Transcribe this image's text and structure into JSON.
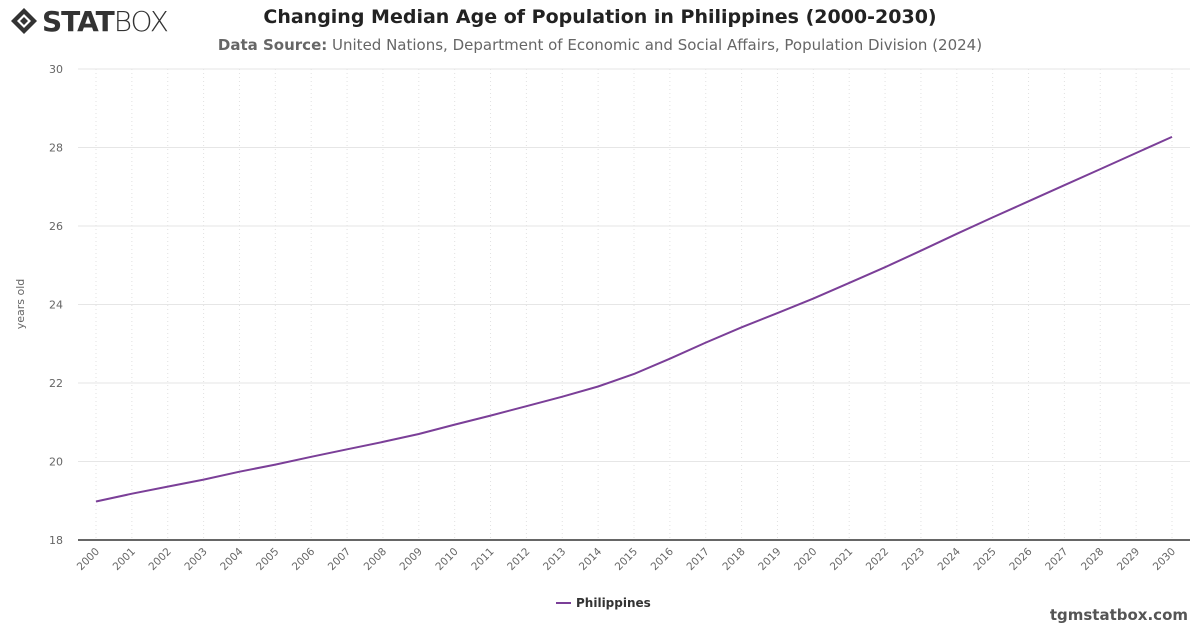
{
  "logo": {
    "bold": "STAT",
    "light": "BOX"
  },
  "header": {
    "title": "Changing Median Age of Population in Philippines (2000-2030)",
    "subtitle_label": "Data Source:",
    "subtitle_text": "United Nations, Department of Economic and Social Affairs, Population Division (2024)"
  },
  "footer": {
    "site": "tgmstatbox.com"
  },
  "chart_data": {
    "type": "line",
    "title": "Changing Median Age of Population in Philippines (2000-2030)",
    "xlabel": "",
    "ylabel": "years old",
    "ylim": [
      18,
      30
    ],
    "yticks": [
      18,
      20,
      22,
      24,
      26,
      28,
      30
    ],
    "grid": true,
    "legend": "bottom-center",
    "x": [
      2000,
      2001,
      2002,
      2003,
      2004,
      2005,
      2006,
      2007,
      2008,
      2009,
      2010,
      2011,
      2012,
      2013,
      2014,
      2015,
      2016,
      2017,
      2018,
      2019,
      2020,
      2021,
      2022,
      2023,
      2024,
      2025,
      2026,
      2027,
      2028,
      2029,
      2030
    ],
    "series": [
      {
        "name": "Philippines",
        "color": "#7b3f98",
        "values": [
          18.98,
          19.18,
          19.36,
          19.54,
          19.74,
          19.92,
          20.12,
          20.31,
          20.5,
          20.7,
          20.94,
          21.17,
          21.41,
          21.65,
          21.91,
          22.23,
          22.62,
          23.03,
          23.42,
          23.78,
          24.15,
          24.55,
          24.95,
          25.37,
          25.8,
          26.22,
          26.63,
          27.04,
          27.45,
          27.86,
          28.27
        ]
      }
    ]
  }
}
